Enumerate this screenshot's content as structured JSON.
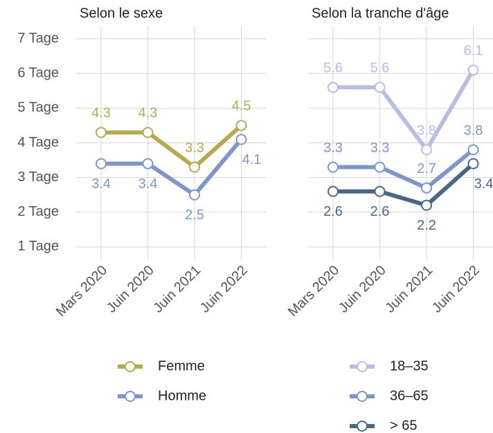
{
  "chart_data": [
    {
      "type": "line",
      "title": "Selon le sexe",
      "categories": [
        "Mars 2020",
        "Juin 2020",
        "Juin 2021",
        "Juin 2022"
      ],
      "series": [
        {
          "name": "Femme",
          "color": "#b6a954",
          "values": [
            4.3,
            4.3,
            3.3,
            4.5
          ]
        },
        {
          "name": "Homme",
          "color": "#7f96c8",
          "values": [
            3.4,
            3.4,
            2.5,
            4.1
          ]
        }
      ],
      "ylim": [
        0.64,
        7.36
      ],
      "yticks": [
        {
          "value": 1,
          "label": "1 Tage"
        },
        {
          "value": 2,
          "label": "2 Tage"
        },
        {
          "value": 3,
          "label": "3 Tage"
        },
        {
          "value": 4,
          "label": "4 Tage"
        },
        {
          "value": 5,
          "label": "5 Tage"
        },
        {
          "value": 6,
          "label": "6 Tage"
        },
        {
          "value": 7,
          "label": "7 Tage"
        }
      ],
      "grid": true
    },
    {
      "type": "line",
      "title": "Selon la tranche d'âge",
      "categories": [
        "Mars 2020",
        "Juin 2020",
        "Juin 2021",
        "Juin 2022"
      ],
      "series": [
        {
          "name": "18–35",
          "color": "#b9bde2",
          "values": [
            5.6,
            5.6,
            3.8,
            6.1
          ]
        },
        {
          "name": "36–65",
          "color": "#7f96c8",
          "values": [
            3.3,
            3.3,
            2.7,
            3.8
          ]
        },
        {
          "name": "> 65",
          "color": "#4a6886",
          "values": [
            2.6,
            2.6,
            2.2,
            3.4
          ]
        }
      ],
      "ylim": [
        0.64,
        7.36
      ],
      "yticks": [
        1,
        2,
        3,
        4,
        5,
        6,
        7
      ],
      "grid": true
    }
  ]
}
